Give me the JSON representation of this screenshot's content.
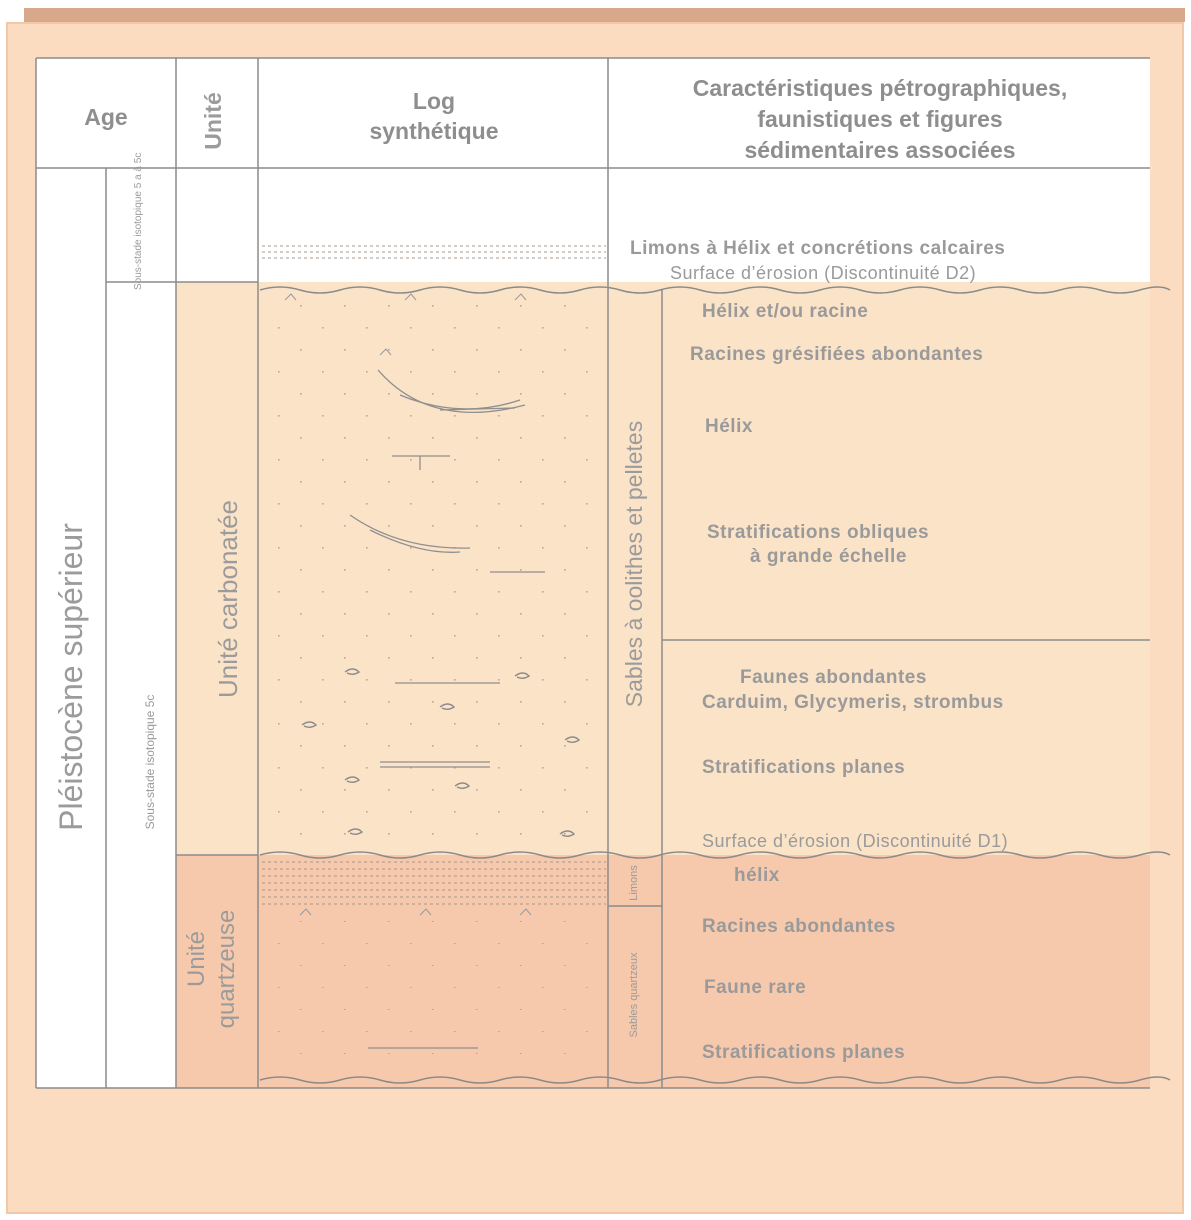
{
  "header": {
    "age": "Age",
    "unite": "Unité",
    "log_line1": "Log",
    "log_line2": "synthétique",
    "carac_line1": "Caractéristiques pétrographiques,",
    "carac_line2": "faunistiques et figures",
    "carac_line3": "sédimentaires associées"
  },
  "age": {
    "main": "Pléistocène supérieur",
    "sub_top": "Sous-stade isotopique 5 a à 5c",
    "sub_main": "Sous-stade isotopique 5c"
  },
  "units": {
    "carbonate": "Unité carbonatée",
    "quartz_line1": "Unité",
    "quartz_line2": "quartzeuse"
  },
  "facies": {
    "oolithes": "Sables à oolithes et pelletes",
    "limons": "Limons",
    "sables_quartzeux": "Sables quartzeux"
  },
  "descriptions": {
    "d0a": "Limons à Hélix et concrétions calcaires",
    "d0b": "Surface d’érosion (Discontinuité D2)",
    "d1": "Hélix et/ou  racine",
    "d2": "Racines  grésifiées abondantes",
    "d3": "Hélix",
    "d4a": "Stratifications  obliques",
    "d4b": "à grande échelle",
    "d5a": "Faunes abondantes",
    "d5b": "Carduim, Glycymeris, strombus",
    "d6": "Stratifications planes",
    "d7": "Surface d’érosion (Discontinuité D1)",
    "d8": "hélix",
    "d9": "Racines abondantes",
    "d10": "Faune rare",
    "d11": "Stratifications planes"
  },
  "colors": {
    "background": "#fcdcc0",
    "carbonate_fill": "#fbe3c8",
    "quartz_fill": "#f6c9ad",
    "line": "#8c8c8c",
    "text": "#9a9a9a"
  }
}
